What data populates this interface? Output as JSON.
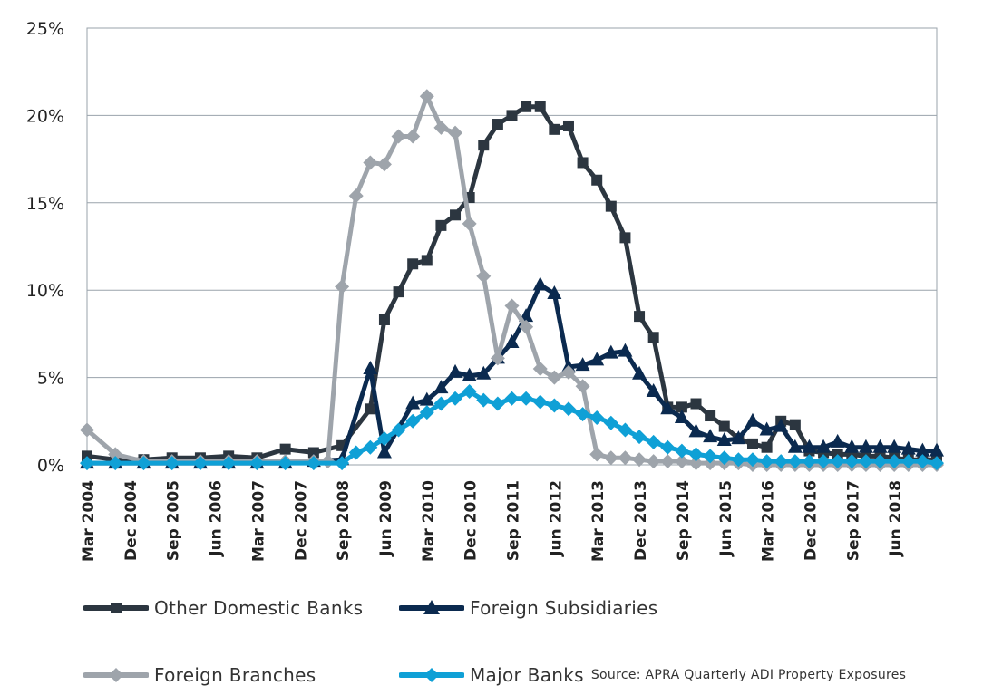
{
  "chart_data": {
    "type": "line",
    "title": "",
    "xlabel": "",
    "ylabel": "",
    "ylim": [
      0,
      25
    ],
    "yticks": [
      0,
      5,
      10,
      15,
      20,
      25
    ],
    "ytick_labels": [
      "0%",
      "5%",
      "10%",
      "15%",
      "20%",
      "25%"
    ],
    "x_tick_labels": [
      "Mar 2004",
      "Dec 2004",
      "Sep 2005",
      "Jun 2006",
      "Mar 2007",
      "Dec 2007",
      "Sep 2008",
      "Jun 2009",
      "Mar 2010",
      "Dec 2010",
      "Sep 2011",
      "Jun 2012",
      "Mar 2013",
      "Dec 2013",
      "Sep 2014",
      "Jun 2015",
      "Mar 2016",
      "Dec 2016",
      "Sep 2017",
      "Jun 2018"
    ],
    "grid": true,
    "series": [
      {
        "name": "Other Domestic Banks",
        "color": "#2c3640",
        "marker": "square",
        "points": [
          [
            0,
            0.5
          ],
          [
            2,
            0.3
          ],
          [
            4,
            0.3
          ],
          [
            6,
            0.4
          ],
          [
            8,
            0.4
          ],
          [
            10,
            0.5
          ],
          [
            12,
            0.4
          ],
          [
            14,
            0.9
          ],
          [
            16,
            0.7
          ],
          [
            18,
            1.1
          ],
          [
            20,
            3.2
          ],
          [
            21,
            8.3
          ],
          [
            22,
            9.9
          ],
          [
            23,
            11.5
          ],
          [
            24,
            11.7
          ],
          [
            25,
            13.7
          ],
          [
            26,
            14.3
          ],
          [
            27,
            15.3
          ],
          [
            28,
            18.3
          ],
          [
            29,
            19.5
          ],
          [
            30,
            20.0
          ],
          [
            31,
            20.5
          ],
          [
            32,
            20.5
          ],
          [
            33,
            19.2
          ],
          [
            34,
            19.4
          ],
          [
            35,
            17.3
          ],
          [
            36,
            16.3
          ],
          [
            37,
            14.8
          ],
          [
            38,
            13.0
          ],
          [
            39,
            8.5
          ],
          [
            40,
            7.3
          ],
          [
            41,
            3.3
          ],
          [
            42,
            3.3
          ],
          [
            43,
            3.5
          ],
          [
            44,
            2.8
          ],
          [
            45,
            2.2
          ],
          [
            46,
            1.5
          ],
          [
            47,
            1.2
          ],
          [
            48,
            1.0
          ],
          [
            49,
            2.5
          ],
          [
            50,
            2.3
          ],
          [
            51,
            0.8
          ],
          [
            52,
            0.7
          ],
          [
            53,
            0.6
          ],
          [
            54,
            0.6
          ],
          [
            55,
            0.5
          ],
          [
            56,
            0.5
          ],
          [
            57,
            0.4
          ],
          [
            58,
            0.3
          ],
          [
            59,
            0.3
          ],
          [
            60,
            0.3
          ]
        ]
      },
      {
        "name": "Foreign Subsidiaries",
        "color": "#0b2a4f",
        "marker": "triangle",
        "points": [
          [
            0,
            0.1
          ],
          [
            2,
            0.1
          ],
          [
            4,
            0.1
          ],
          [
            6,
            0.1
          ],
          [
            8,
            0.1
          ],
          [
            10,
            0.1
          ],
          [
            12,
            0.1
          ],
          [
            14,
            0.1
          ],
          [
            16,
            0.2
          ],
          [
            18,
            0.3
          ],
          [
            20,
            5.5
          ],
          [
            21,
            0.7
          ],
          [
            23,
            3.5
          ],
          [
            24,
            3.7
          ],
          [
            25,
            4.4
          ],
          [
            26,
            5.3
          ],
          [
            27,
            5.1
          ],
          [
            28,
            5.2
          ],
          [
            29,
            6.1
          ],
          [
            30,
            7.0
          ],
          [
            31,
            8.5
          ],
          [
            32,
            10.3
          ],
          [
            33,
            9.8
          ],
          [
            34,
            5.6
          ],
          [
            35,
            5.7
          ],
          [
            36,
            6.0
          ],
          [
            37,
            6.4
          ],
          [
            38,
            6.5
          ],
          [
            39,
            5.2
          ],
          [
            40,
            4.2
          ],
          [
            41,
            3.2
          ],
          [
            42,
            2.7
          ],
          [
            43,
            1.9
          ],
          [
            44,
            1.6
          ],
          [
            45,
            1.4
          ],
          [
            46,
            1.5
          ],
          [
            47,
            2.5
          ],
          [
            48,
            2.0
          ],
          [
            49,
            2.2
          ],
          [
            50,
            1.0
          ],
          [
            51,
            1.0
          ],
          [
            52,
            1.0
          ],
          [
            53,
            1.3
          ],
          [
            54,
            1.0
          ],
          [
            55,
            1.0
          ],
          [
            56,
            1.0
          ],
          [
            57,
            1.0
          ],
          [
            58,
            0.9
          ],
          [
            59,
            0.8
          ],
          [
            60,
            0.8
          ]
        ]
      },
      {
        "name": "Foreign Branches",
        "color": "#9ea4ab",
        "marker": "diamond",
        "points": [
          [
            0,
            2.0
          ],
          [
            2,
            0.6
          ],
          [
            4,
            0.2
          ],
          [
            6,
            0.2
          ],
          [
            8,
            0.2
          ],
          [
            10,
            0.2
          ],
          [
            12,
            0.2
          ],
          [
            14,
            0.2
          ],
          [
            16,
            0.2
          ],
          [
            17,
            0.2
          ],
          [
            18,
            10.2
          ],
          [
            19,
            15.4
          ],
          [
            20,
            17.3
          ],
          [
            21,
            17.2
          ],
          [
            22,
            18.8
          ],
          [
            23,
            18.8
          ],
          [
            24,
            21.1
          ],
          [
            25,
            19.3
          ],
          [
            26,
            19.0
          ],
          [
            27,
            13.8
          ],
          [
            28,
            10.8
          ],
          [
            29,
            6.1
          ],
          [
            30,
            9.1
          ],
          [
            31,
            7.9
          ],
          [
            32,
            5.5
          ],
          [
            33,
            5.0
          ],
          [
            34,
            5.3
          ],
          [
            35,
            4.5
          ],
          [
            36,
            0.6
          ],
          [
            37,
            0.4
          ],
          [
            38,
            0.4
          ],
          [
            39,
            0.3
          ],
          [
            40,
            0.2
          ],
          [
            41,
            0.2
          ],
          [
            42,
            0.2
          ],
          [
            43,
            0.1
          ],
          [
            44,
            0.1
          ],
          [
            45,
            0.1
          ],
          [
            46,
            0.1
          ],
          [
            47,
            0.0
          ],
          [
            48,
            0.0
          ],
          [
            49,
            0.0
          ],
          [
            50,
            0.0
          ],
          [
            51,
            0.0
          ],
          [
            52,
            0.0
          ],
          [
            53,
            0.0
          ],
          [
            54,
            0.0
          ],
          [
            55,
            0.0
          ],
          [
            56,
            0.0
          ],
          [
            57,
            0.0
          ],
          [
            58,
            0.0
          ],
          [
            59,
            0.0
          ],
          [
            60,
            0.0
          ]
        ]
      },
      {
        "name": "Major Banks",
        "color": "#0fa0d6",
        "marker": "diamond",
        "points": [
          [
            0,
            0.1
          ],
          [
            2,
            0.1
          ],
          [
            4,
            0.1
          ],
          [
            6,
            0.1
          ],
          [
            8,
            0.1
          ],
          [
            10,
            0.1
          ],
          [
            12,
            0.1
          ],
          [
            14,
            0.1
          ],
          [
            16,
            0.1
          ],
          [
            18,
            0.1
          ],
          [
            19,
            0.7
          ],
          [
            20,
            1.0
          ],
          [
            21,
            1.5
          ],
          [
            22,
            2.0
          ],
          [
            23,
            2.5
          ],
          [
            24,
            3.0
          ],
          [
            25,
            3.5
          ],
          [
            26,
            3.8
          ],
          [
            27,
            4.2
          ],
          [
            28,
            3.7
          ],
          [
            29,
            3.5
          ],
          [
            30,
            3.8
          ],
          [
            31,
            3.8
          ],
          [
            32,
            3.6
          ],
          [
            33,
            3.4
          ],
          [
            34,
            3.2
          ],
          [
            35,
            2.9
          ],
          [
            36,
            2.7
          ],
          [
            37,
            2.4
          ],
          [
            38,
            2.0
          ],
          [
            39,
            1.6
          ],
          [
            40,
            1.3
          ],
          [
            41,
            1.0
          ],
          [
            42,
            0.8
          ],
          [
            43,
            0.6
          ],
          [
            44,
            0.5
          ],
          [
            45,
            0.4
          ],
          [
            46,
            0.3
          ],
          [
            47,
            0.3
          ],
          [
            48,
            0.2
          ],
          [
            49,
            0.2
          ],
          [
            50,
            0.2
          ],
          [
            51,
            0.2
          ],
          [
            52,
            0.2
          ],
          [
            53,
            0.2
          ],
          [
            54,
            0.2
          ],
          [
            55,
            0.2
          ],
          [
            56,
            0.2
          ],
          [
            57,
            0.2
          ],
          [
            58,
            0.2
          ],
          [
            59,
            0.2
          ],
          [
            60,
            0.1
          ]
        ]
      }
    ]
  },
  "source_text": "Source: APRA Quarterly ADI Property Exposures"
}
